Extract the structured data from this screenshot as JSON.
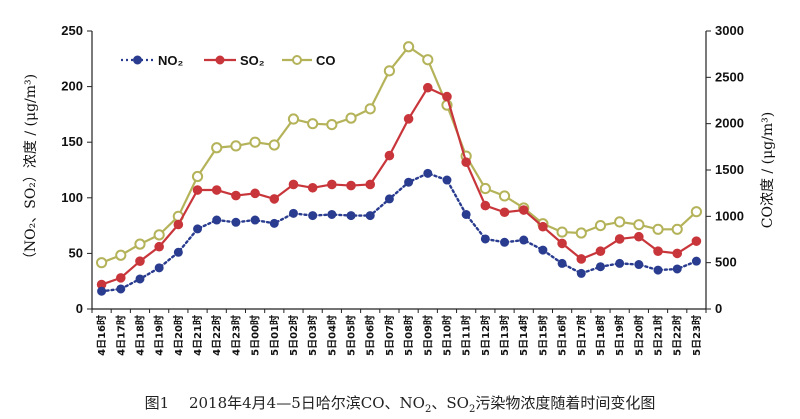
{
  "colors": {
    "no2": "#2a3c8f",
    "so2": "#c8363b",
    "co_line": "#b5b35a",
    "co_marker_fill": "#ffffff",
    "axis": "#222222"
  },
  "chart_data": {
    "type": "line",
    "title": "",
    "caption": {
      "prefix": "图1　 2018年4月4—5日哈尔滨CO、NO",
      "sub1": "2",
      "middle": "、SO",
      "sub2": "2",
      "suffix": "污染物浓度随着时间变化图"
    },
    "categories": [
      "4日16时",
      "4日17时",
      "4日18时",
      "4日19时",
      "4日20时",
      "4日21时",
      "4日22时",
      "4日23时",
      "5日00时",
      "5日01时",
      "5日02时",
      "5日03时",
      "5日04时",
      "5日05时",
      "5日06时",
      "5日07时",
      "5日08时",
      "5日09时",
      "5日10时",
      "5日11时",
      "5日12时",
      "5日13时",
      "5日14时",
      "5日15时",
      "5日16时",
      "5日17时",
      "5日18时",
      "5日19时",
      "5日20时",
      "5日21时",
      "5日22时",
      "5日23时"
    ],
    "y_left": {
      "label": "（NO₂、SO₂）浓度 / (μg/m³)",
      "range": [
        0,
        250
      ],
      "ticks": [
        "0",
        "50",
        "100",
        "150",
        "200",
        "250"
      ]
    },
    "y_right": {
      "label": "CO浓度 / (μg/m³)",
      "range": [
        0,
        3000
      ],
      "ticks": [
        "0",
        "500",
        "1000",
        "1500",
        "2000",
        "2500",
        "3000"
      ]
    },
    "legend": {
      "placement": "top-left",
      "no2": "NO₂",
      "so2": "SO₂",
      "co": "CO"
    },
    "series": [
      {
        "name": "NO₂",
        "axis": "left",
        "style": "dotted",
        "values": [
          16,
          18,
          27,
          37,
          51,
          72,
          80,
          78,
          80,
          77,
          86,
          84,
          85,
          84,
          84,
          99,
          114,
          122,
          116,
          85,
          63,
          60,
          62,
          53,
          41,
          32,
          38,
          41,
          40,
          35,
          36,
          43
        ]
      },
      {
        "name": "SO₂",
        "axis": "left",
        "style": "solid",
        "values": [
          22,
          28,
          43,
          56,
          76,
          107,
          107,
          102,
          104,
          99,
          112,
          109,
          112,
          111,
          112,
          138,
          171,
          199,
          191,
          132,
          93,
          87,
          89,
          74,
          59,
          45,
          52,
          63,
          65,
          52,
          50,
          61
        ]
      },
      {
        "name": "CO",
        "axis": "right",
        "style": "solid",
        "values": [
          500,
          580,
          700,
          800,
          1000,
          1430,
          1740,
          1760,
          1800,
          1770,
          2050,
          2000,
          1990,
          2060,
          2160,
          2570,
          2830,
          2690,
          2200,
          1650,
          1300,
          1220,
          1090,
          920,
          830,
          820,
          900,
          940,
          910,
          860,
          860,
          1050
        ]
      }
    ]
  }
}
